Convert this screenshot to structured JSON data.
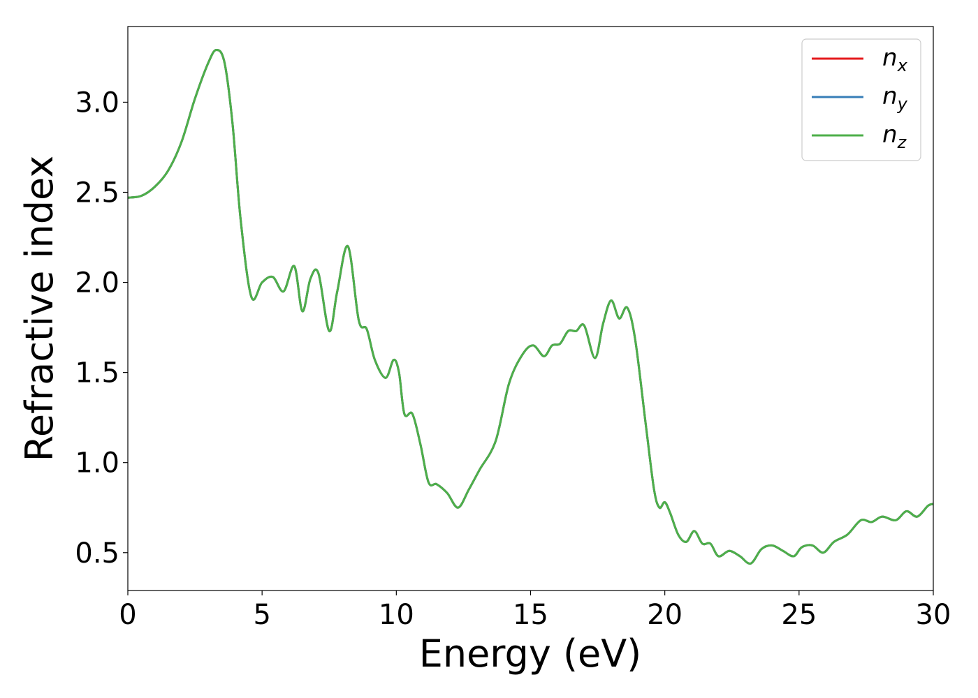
{
  "chart_data": {
    "type": "line",
    "xlabel": "Energy (eV)",
    "ylabel": "Refractive index",
    "xlim": [
      0,
      30
    ],
    "ylim": [
      0.29,
      3.42
    ],
    "xticks": [
      0,
      5,
      10,
      15,
      20,
      25,
      30
    ],
    "xtick_labels": [
      "0",
      "5",
      "10",
      "15",
      "20",
      "25",
      "30"
    ],
    "yticks": [
      0.5,
      1.0,
      1.5,
      2.0,
      2.5,
      3.0
    ],
    "ytick_labels": [
      "0.5",
      "1.0",
      "1.5",
      "2.0",
      "2.5",
      "3.0"
    ],
    "grid": false,
    "legend_position": "top-right",
    "series": [
      {
        "name": "n_x",
        "base": "n",
        "sub": "x",
        "color": "#e41a1c",
        "x": [
          0,
          0.5,
          1,
          1.5,
          2,
          2.5,
          3,
          3.3,
          3.6,
          3.9,
          4.2,
          4.6,
          5,
          5.4,
          5.8,
          6.2,
          6.5,
          6.8,
          7.1,
          7.5,
          7.8,
          8.2,
          8.6,
          8.9,
          9.2,
          9.6,
          9.9,
          10.1,
          10.3,
          10.6,
          10.9,
          11.2,
          11.5,
          11.9,
          12.3,
          12.7,
          13.1,
          13.7,
          14.2,
          14.7,
          15.1,
          15.5,
          15.8,
          16.1,
          16.4,
          16.7,
          17,
          17.4,
          17.7,
          18,
          18.3,
          18.6,
          18.9,
          19.3,
          19.6,
          19.8,
          20,
          20.2,
          20.5,
          20.8,
          21.1,
          21.4,
          21.7,
          22,
          22.4,
          22.8,
          23.2,
          23.6,
          24,
          24.4,
          24.8,
          25.1,
          25.5,
          25.9,
          26.3,
          26.8,
          27.3,
          27.7,
          28.1,
          28.6,
          29,
          29.4,
          29.8,
          30
        ],
        "y": [
          2.47,
          2.48,
          2.53,
          2.62,
          2.78,
          3.02,
          3.22,
          3.29,
          3.22,
          2.88,
          2.35,
          1.92,
          2.0,
          2.03,
          1.95,
          2.09,
          1.84,
          2.02,
          2.05,
          1.73,
          1.95,
          2.2,
          1.79,
          1.74,
          1.57,
          1.47,
          1.57,
          1.5,
          1.27,
          1.27,
          1.1,
          0.89,
          0.88,
          0.83,
          0.75,
          0.85,
          0.96,
          1.12,
          1.44,
          1.6,
          1.65,
          1.59,
          1.65,
          1.66,
          1.73,
          1.73,
          1.76,
          1.58,
          1.77,
          1.9,
          1.8,
          1.86,
          1.68,
          1.2,
          0.85,
          0.75,
          0.78,
          0.72,
          0.6,
          0.56,
          0.62,
          0.55,
          0.55,
          0.48,
          0.51,
          0.48,
          0.44,
          0.52,
          0.54,
          0.51,
          0.48,
          0.53,
          0.54,
          0.5,
          0.56,
          0.6,
          0.68,
          0.67,
          0.7,
          0.68,
          0.73,
          0.7,
          0.76,
          0.77
        ]
      },
      {
        "name": "n_y",
        "base": "n",
        "sub": "y",
        "color": "#377eb8",
        "x": [
          0,
          0.5,
          1,
          1.5,
          2,
          2.5,
          3,
          3.3,
          3.6,
          3.9,
          4.2,
          4.6,
          5,
          5.4,
          5.8,
          6.2,
          6.5,
          6.8,
          7.1,
          7.5,
          7.8,
          8.2,
          8.6,
          8.9,
          9.2,
          9.6,
          9.9,
          10.1,
          10.3,
          10.6,
          10.9,
          11.2,
          11.5,
          11.9,
          12.3,
          12.7,
          13.1,
          13.7,
          14.2,
          14.7,
          15.1,
          15.5,
          15.8,
          16.1,
          16.4,
          16.7,
          17,
          17.4,
          17.7,
          18,
          18.3,
          18.6,
          18.9,
          19.3,
          19.6,
          19.8,
          20,
          20.2,
          20.5,
          20.8,
          21.1,
          21.4,
          21.7,
          22,
          22.4,
          22.8,
          23.2,
          23.6,
          24,
          24.4,
          24.8,
          25.1,
          25.5,
          25.9,
          26.3,
          26.8,
          27.3,
          27.7,
          28.1,
          28.6,
          29,
          29.4,
          29.8,
          30
        ],
        "y": [
          2.47,
          2.48,
          2.53,
          2.62,
          2.78,
          3.02,
          3.22,
          3.29,
          3.22,
          2.88,
          2.35,
          1.92,
          2.0,
          2.03,
          1.95,
          2.09,
          1.84,
          2.02,
          2.05,
          1.73,
          1.95,
          2.2,
          1.79,
          1.74,
          1.57,
          1.47,
          1.57,
          1.5,
          1.27,
          1.27,
          1.1,
          0.89,
          0.88,
          0.83,
          0.75,
          0.85,
          0.96,
          1.12,
          1.44,
          1.6,
          1.65,
          1.59,
          1.65,
          1.66,
          1.73,
          1.73,
          1.76,
          1.58,
          1.77,
          1.9,
          1.8,
          1.86,
          1.68,
          1.2,
          0.85,
          0.75,
          0.78,
          0.72,
          0.6,
          0.56,
          0.62,
          0.55,
          0.55,
          0.48,
          0.51,
          0.48,
          0.44,
          0.52,
          0.54,
          0.51,
          0.48,
          0.53,
          0.54,
          0.5,
          0.56,
          0.6,
          0.68,
          0.67,
          0.7,
          0.68,
          0.73,
          0.7,
          0.76,
          0.77
        ]
      },
      {
        "name": "n_z",
        "base": "n",
        "sub": "z",
        "color": "#4daf4a",
        "x": [
          0,
          0.5,
          1,
          1.5,
          2,
          2.5,
          3,
          3.3,
          3.6,
          3.9,
          4.2,
          4.6,
          5,
          5.4,
          5.8,
          6.2,
          6.5,
          6.8,
          7.1,
          7.5,
          7.8,
          8.2,
          8.6,
          8.9,
          9.2,
          9.6,
          9.9,
          10.1,
          10.3,
          10.6,
          10.9,
          11.2,
          11.5,
          11.9,
          12.3,
          12.7,
          13.1,
          13.7,
          14.2,
          14.7,
          15.1,
          15.5,
          15.8,
          16.1,
          16.4,
          16.7,
          17,
          17.4,
          17.7,
          18,
          18.3,
          18.6,
          18.9,
          19.3,
          19.6,
          19.8,
          20,
          20.2,
          20.5,
          20.8,
          21.1,
          21.4,
          21.7,
          22,
          22.4,
          22.8,
          23.2,
          23.6,
          24,
          24.4,
          24.8,
          25.1,
          25.5,
          25.9,
          26.3,
          26.8,
          27.3,
          27.7,
          28.1,
          28.6,
          29,
          29.4,
          29.8,
          30
        ],
        "y": [
          2.47,
          2.48,
          2.53,
          2.62,
          2.78,
          3.02,
          3.22,
          3.29,
          3.22,
          2.88,
          2.35,
          1.92,
          2.0,
          2.03,
          1.95,
          2.09,
          1.84,
          2.02,
          2.05,
          1.73,
          1.95,
          2.2,
          1.79,
          1.74,
          1.57,
          1.47,
          1.57,
          1.5,
          1.27,
          1.27,
          1.1,
          0.89,
          0.88,
          0.83,
          0.75,
          0.85,
          0.96,
          1.12,
          1.44,
          1.6,
          1.65,
          1.59,
          1.65,
          1.66,
          1.73,
          1.73,
          1.76,
          1.58,
          1.77,
          1.9,
          1.8,
          1.86,
          1.68,
          1.2,
          0.85,
          0.75,
          0.78,
          0.72,
          0.6,
          0.56,
          0.62,
          0.55,
          0.55,
          0.48,
          0.51,
          0.48,
          0.44,
          0.52,
          0.54,
          0.51,
          0.48,
          0.53,
          0.54,
          0.5,
          0.56,
          0.6,
          0.68,
          0.67,
          0.7,
          0.68,
          0.73,
          0.7,
          0.76,
          0.77
        ]
      }
    ]
  }
}
